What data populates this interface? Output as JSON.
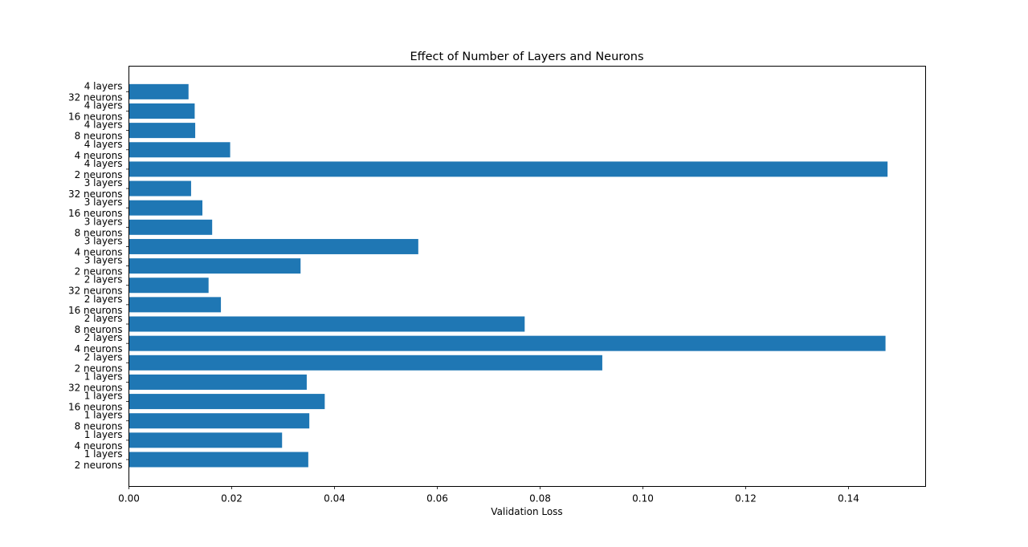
{
  "chart_data": {
    "type": "bar",
    "orientation": "horizontal",
    "title": "Effect of Number of Layers and Neurons",
    "xlabel": "Validation Loss",
    "ylabel": "",
    "xlim": [
      0,
      0.155
    ],
    "xticks": [
      0.0,
      0.02,
      0.04,
      0.06,
      0.08,
      0.1,
      0.12,
      0.14
    ],
    "xtick_labels": [
      "0.00",
      "0.02",
      "0.04",
      "0.06",
      "0.08",
      "0.10",
      "0.12",
      "0.14"
    ],
    "color": "#1f77b4",
    "grid": false,
    "categories": [
      [
        "1 layers",
        "2 neurons"
      ],
      [
        "1 layers",
        "4 neurons"
      ],
      [
        "1 layers",
        "8 neurons"
      ],
      [
        "1 layers",
        "16 neurons"
      ],
      [
        "1 layers",
        "32 neurons"
      ],
      [
        "2 layers",
        "2 neurons"
      ],
      [
        "2 layers",
        "4 neurons"
      ],
      [
        "2 layers",
        "8 neurons"
      ],
      [
        "2 layers",
        "16 neurons"
      ],
      [
        "2 layers",
        "32 neurons"
      ],
      [
        "3 layers",
        "2 neurons"
      ],
      [
        "3 layers",
        "4 neurons"
      ],
      [
        "3 layers",
        "8 neurons"
      ],
      [
        "3 layers",
        "16 neurons"
      ],
      [
        "3 layers",
        "32 neurons"
      ],
      [
        "4 layers",
        "2 neurons"
      ],
      [
        "4 layers",
        "4 neurons"
      ],
      [
        "4 layers",
        "8 neurons"
      ],
      [
        "4 layers",
        "16 neurons"
      ],
      [
        "4 layers",
        "32 neurons"
      ]
    ],
    "values": [
      0.0349,
      0.0298,
      0.0351,
      0.0381,
      0.0346,
      0.0921,
      0.1472,
      0.077,
      0.0179,
      0.0155,
      0.0334,
      0.0563,
      0.0162,
      0.0143,
      0.0121,
      0.1476,
      0.0197,
      0.0129,
      0.0128,
      0.0116
    ]
  }
}
